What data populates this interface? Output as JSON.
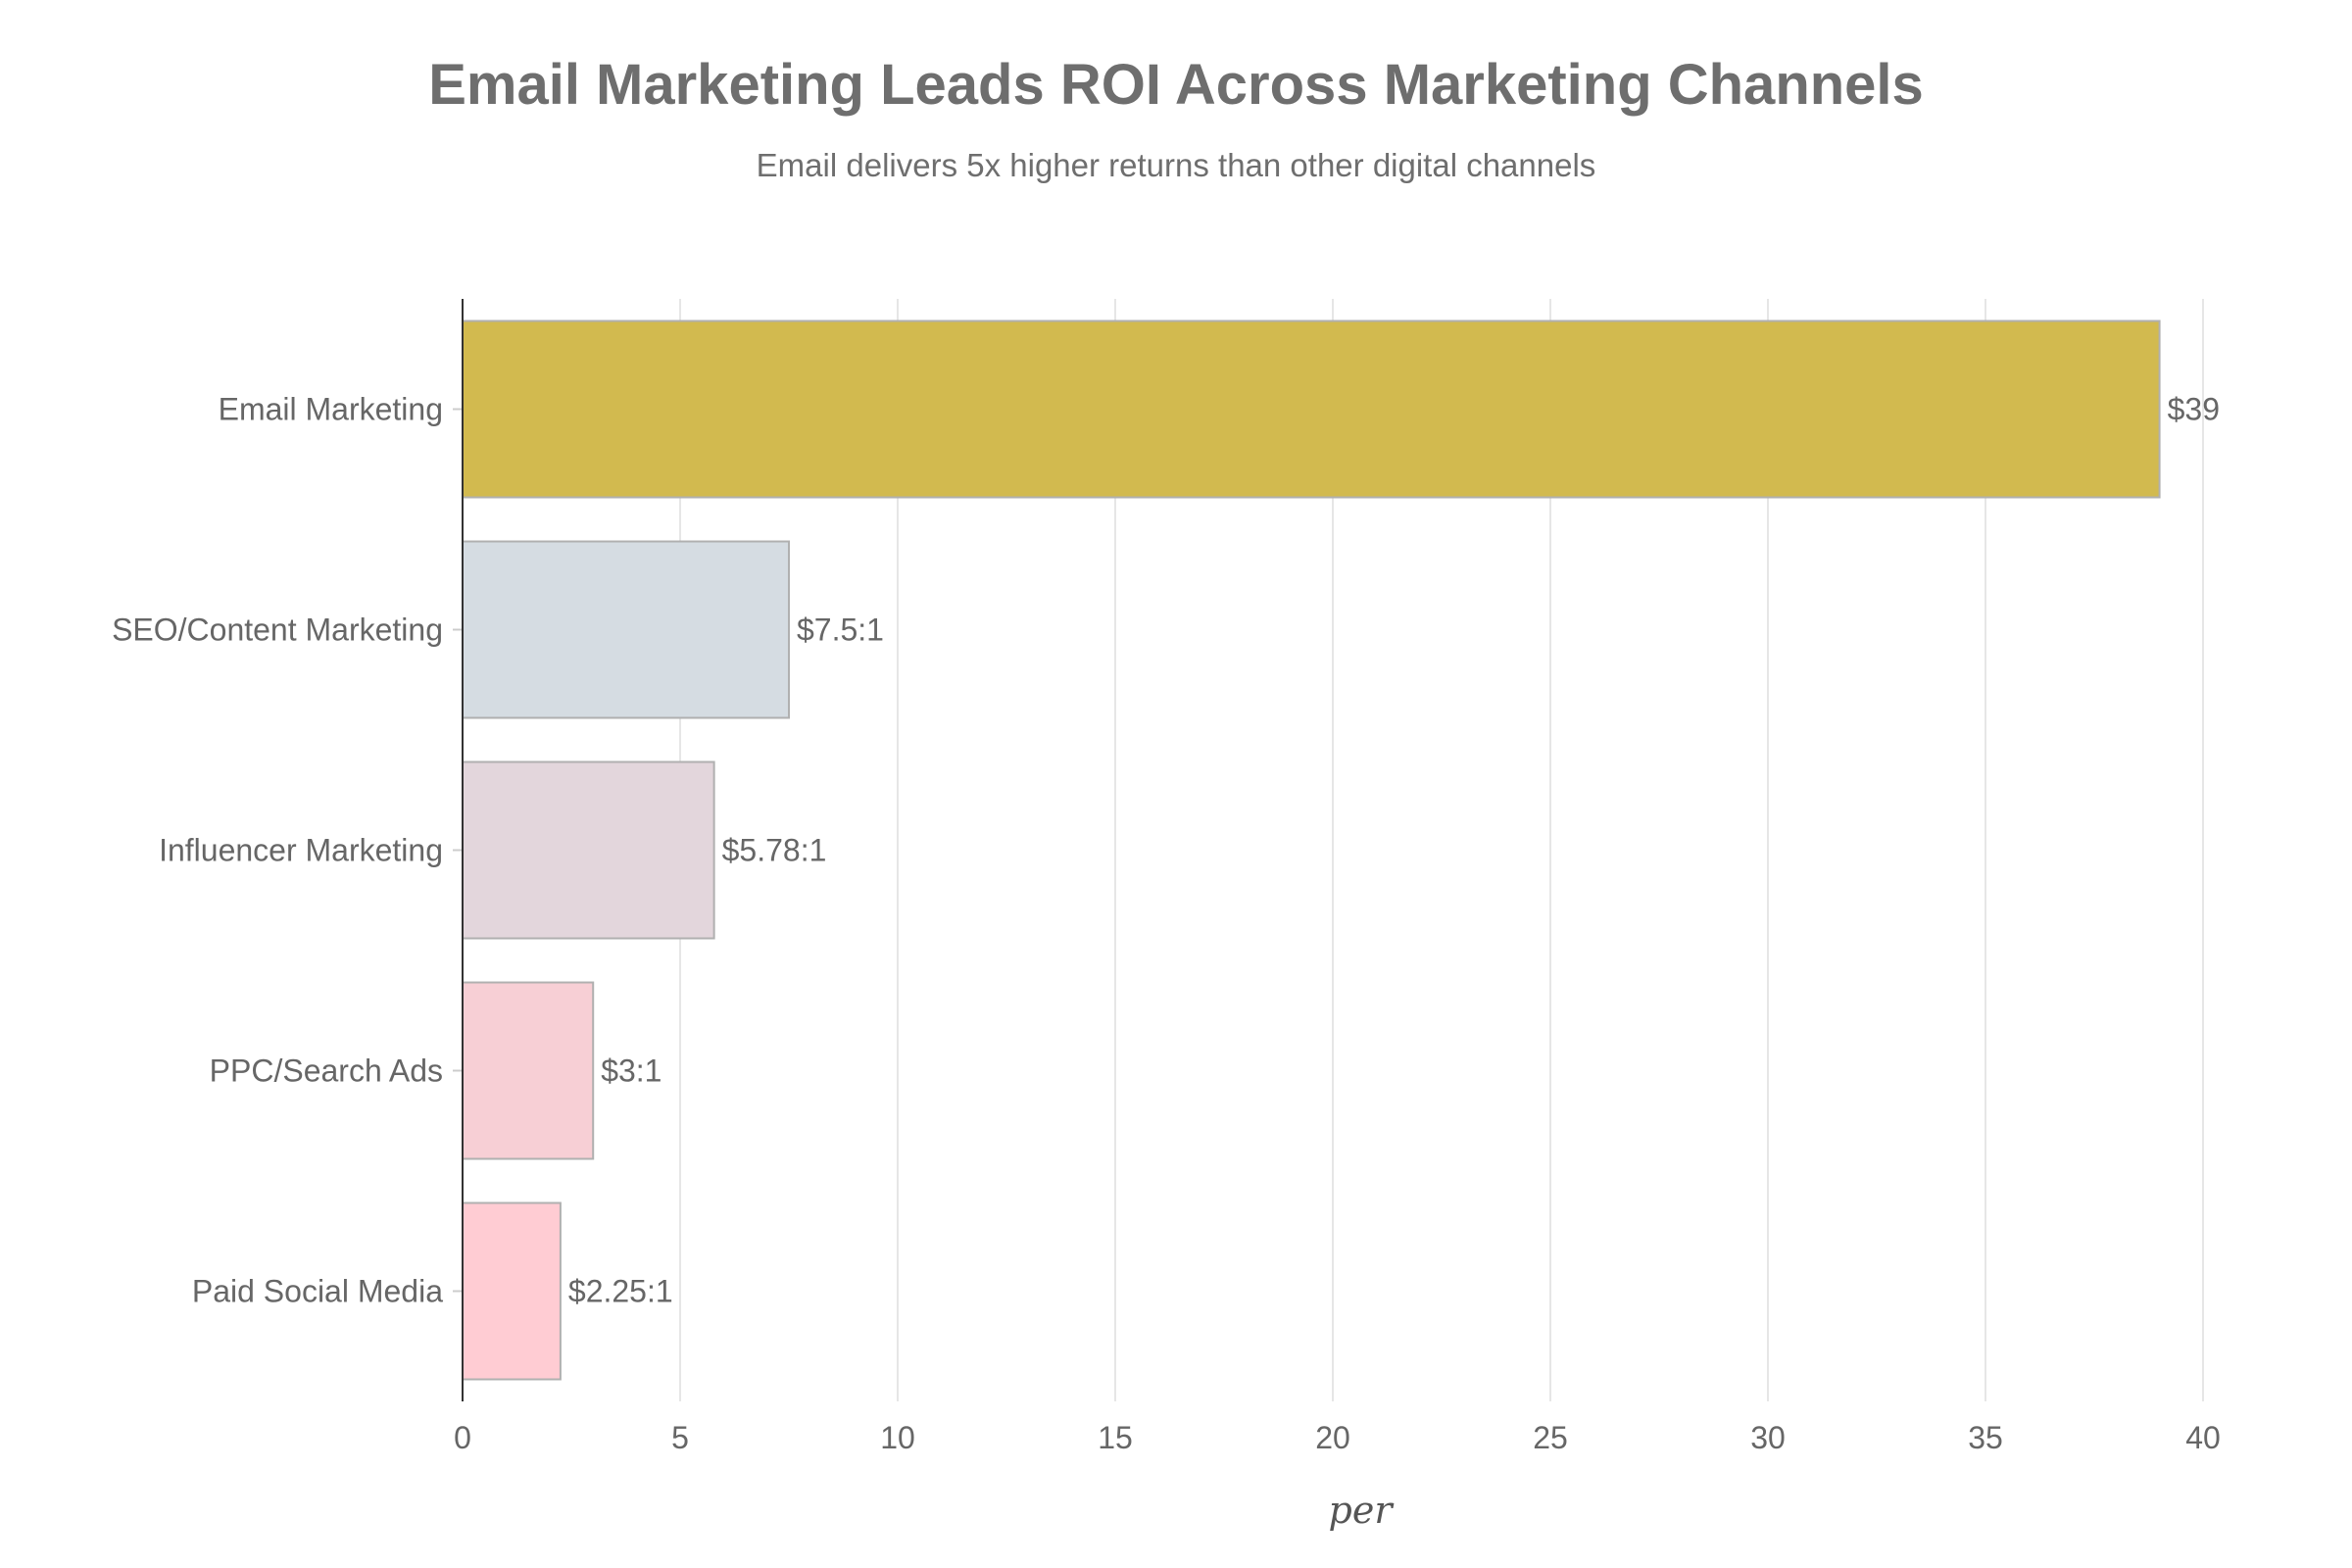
{
  "chart_data": {
    "type": "bar",
    "orientation": "horizontal",
    "title": "Email Marketing Leads ROI Across Marketing Channels",
    "subtitle": "Email delivers 5x higher returns than other digital channels",
    "xlabel": "per",
    "ylabel": "",
    "xlim": [
      0,
      40
    ],
    "xticks": [
      0,
      5,
      10,
      15,
      20,
      25,
      30,
      35,
      40
    ],
    "grid": true,
    "categories": [
      "Email Marketing",
      "SEO/Content Marketing",
      "Influencer Marketing",
      "PPC/Search Ads",
      "Paid Social Media"
    ],
    "values": [
      39,
      7.5,
      5.78,
      3,
      2.25
    ],
    "data_labels": [
      "$39",
      "$7.5:1",
      "$5.78:1",
      "$3:1",
      "$2.25:1"
    ],
    "colors": [
      "#d2ba4f",
      "#d5dce2",
      "#e3d6dc",
      "#f7cfd5",
      "#ffccd3"
    ]
  }
}
